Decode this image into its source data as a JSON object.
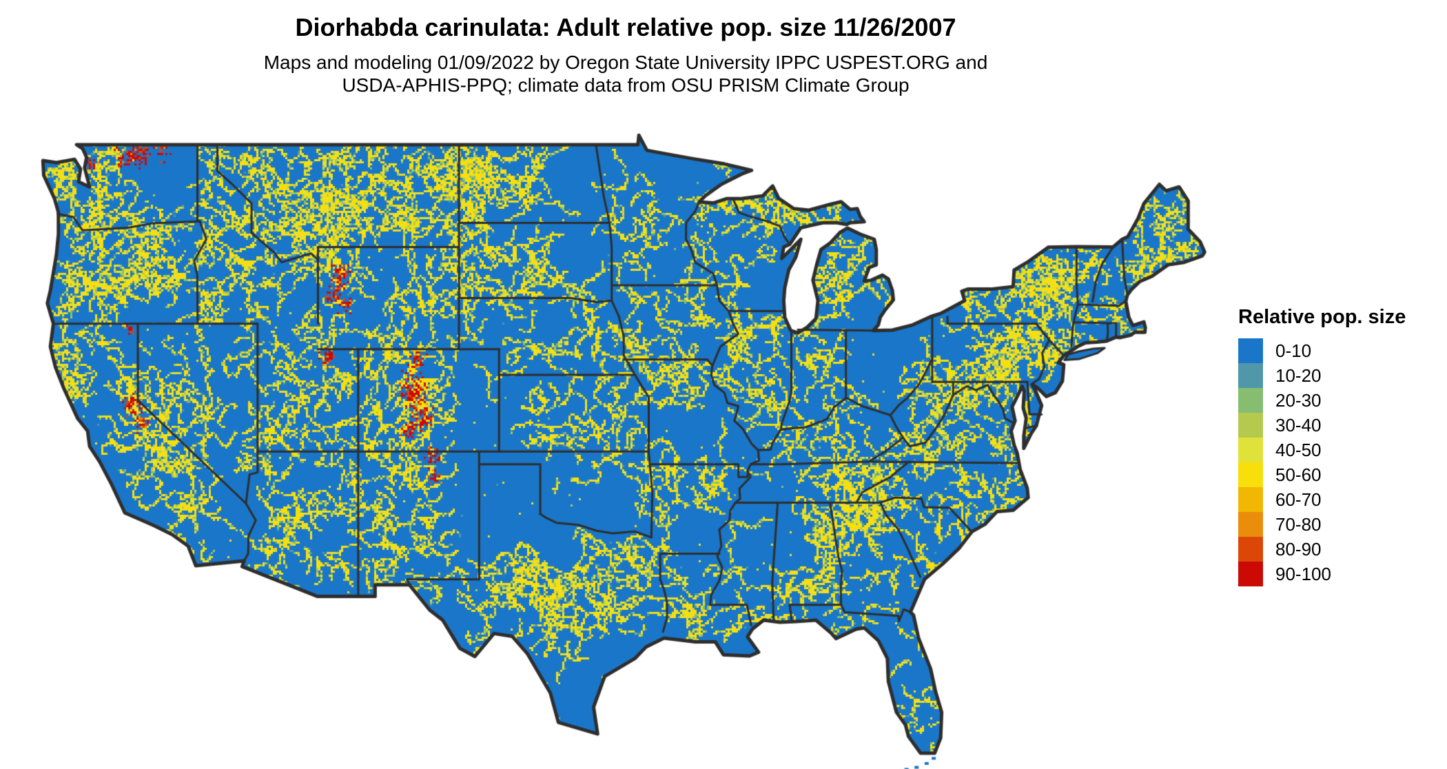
{
  "header": {
    "title": "Diorhabda carinulata: Adult relative pop. size 11/26/2007",
    "subtitle_line1": "Maps and modeling 01/09/2022 by Oregon State University IPPC USPEST.ORG and",
    "subtitle_line2": "USDA-APHIS-PPQ; climate data from OSU PRISM Climate Group"
  },
  "legend": {
    "title": "Relative pop. size",
    "items": [
      {
        "label": "0-10",
        "color": "#1a76c8"
      },
      {
        "label": "10-20",
        "color": "#4f97a9"
      },
      {
        "label": "20-30",
        "color": "#86bd71"
      },
      {
        "label": "30-40",
        "color": "#b4c94e"
      },
      {
        "label": "40-50",
        "color": "#e0e139"
      },
      {
        "label": "50-60",
        "color": "#f8df0c"
      },
      {
        "label": "60-70",
        "color": "#f1b703"
      },
      {
        "label": "70-80",
        "color": "#e98d0b"
      },
      {
        "label": "80-90",
        "color": "#dc4708"
      },
      {
        "label": "90-100",
        "color": "#cc0a04"
      }
    ]
  },
  "map": {
    "background": "#ffffff",
    "land_base_color": "#1a76c8",
    "border_color": "#2e2e2e",
    "texture_colors": {
      "yellow": "#f8df0c",
      "yellow_green": "#e0e139",
      "olive": "#b4c94e",
      "green": "#86bd71",
      "teal": "#4f97a9"
    },
    "red_colors": [
      "#cc0a04",
      "#dc4708",
      "#e98d0b"
    ]
  }
}
